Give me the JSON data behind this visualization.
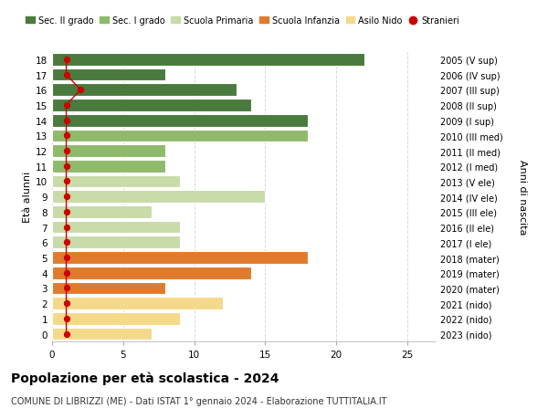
{
  "ages": [
    0,
    1,
    2,
    3,
    4,
    5,
    6,
    7,
    8,
    9,
    10,
    11,
    12,
    13,
    14,
    15,
    16,
    17,
    18
  ],
  "right_labels": [
    "2023 (nido)",
    "2022 (nido)",
    "2021 (nido)",
    "2020 (mater)",
    "2019 (mater)",
    "2018 (mater)",
    "2017 (I ele)",
    "2016 (II ele)",
    "2015 (III ele)",
    "2014 (IV ele)",
    "2013 (V ele)",
    "2012 (I med)",
    "2011 (II med)",
    "2010 (III med)",
    "2009 (I sup)",
    "2008 (II sup)",
    "2007 (III sup)",
    "2006 (IV sup)",
    "2005 (V sup)"
  ],
  "bar_values": [
    7,
    9,
    12,
    8,
    14,
    18,
    9,
    9,
    7,
    15,
    9,
    8,
    8,
    18,
    18,
    14,
    13,
    8,
    22
  ],
  "bar_colors": [
    "#f5d98a",
    "#f5d98a",
    "#f5d98a",
    "#e07b2e",
    "#e07b2e",
    "#e07b2e",
    "#c8dba8",
    "#c8dba8",
    "#c8dba8",
    "#c8dba8",
    "#c8dba8",
    "#8fba6a",
    "#8fba6a",
    "#8fba6a",
    "#4a7a3d",
    "#4a7a3d",
    "#4a7a3d",
    "#4a7a3d",
    "#4a7a3d"
  ],
  "stranieri_values": [
    1,
    1,
    1,
    1,
    1,
    1,
    1,
    1,
    1,
    1,
    1,
    1,
    1,
    1,
    1,
    1,
    2,
    1,
    1
  ],
  "legend_labels": [
    "Sec. II grado",
    "Sec. I grado",
    "Scuola Primaria",
    "Scuola Infanzia",
    "Asilo Nido",
    "Stranieri"
  ],
  "legend_colors": [
    "#4a7a3d",
    "#8fba6a",
    "#c8dba8",
    "#e07b2e",
    "#f5d98a",
    "#cc0000"
  ],
  "title": "Popolazione per età scolastica - 2024",
  "subtitle": "COMUNE DI LIBRIZZI (ME) - Dati ISTAT 1° gennaio 2024 - Elaborazione TUTTITALIA.IT",
  "ylabel": "Età alunni",
  "right_ylabel": "Anni di nascita",
  "xlim": [
    0,
    27
  ],
  "ylim": [
    -0.5,
    18.5
  ],
  "xticks": [
    0,
    5,
    10,
    15,
    20,
    25
  ],
  "background_color": "#ffffff",
  "bar_height": 0.82,
  "line_color": "#cc0000",
  "grid_color": "#d8d8d8"
}
